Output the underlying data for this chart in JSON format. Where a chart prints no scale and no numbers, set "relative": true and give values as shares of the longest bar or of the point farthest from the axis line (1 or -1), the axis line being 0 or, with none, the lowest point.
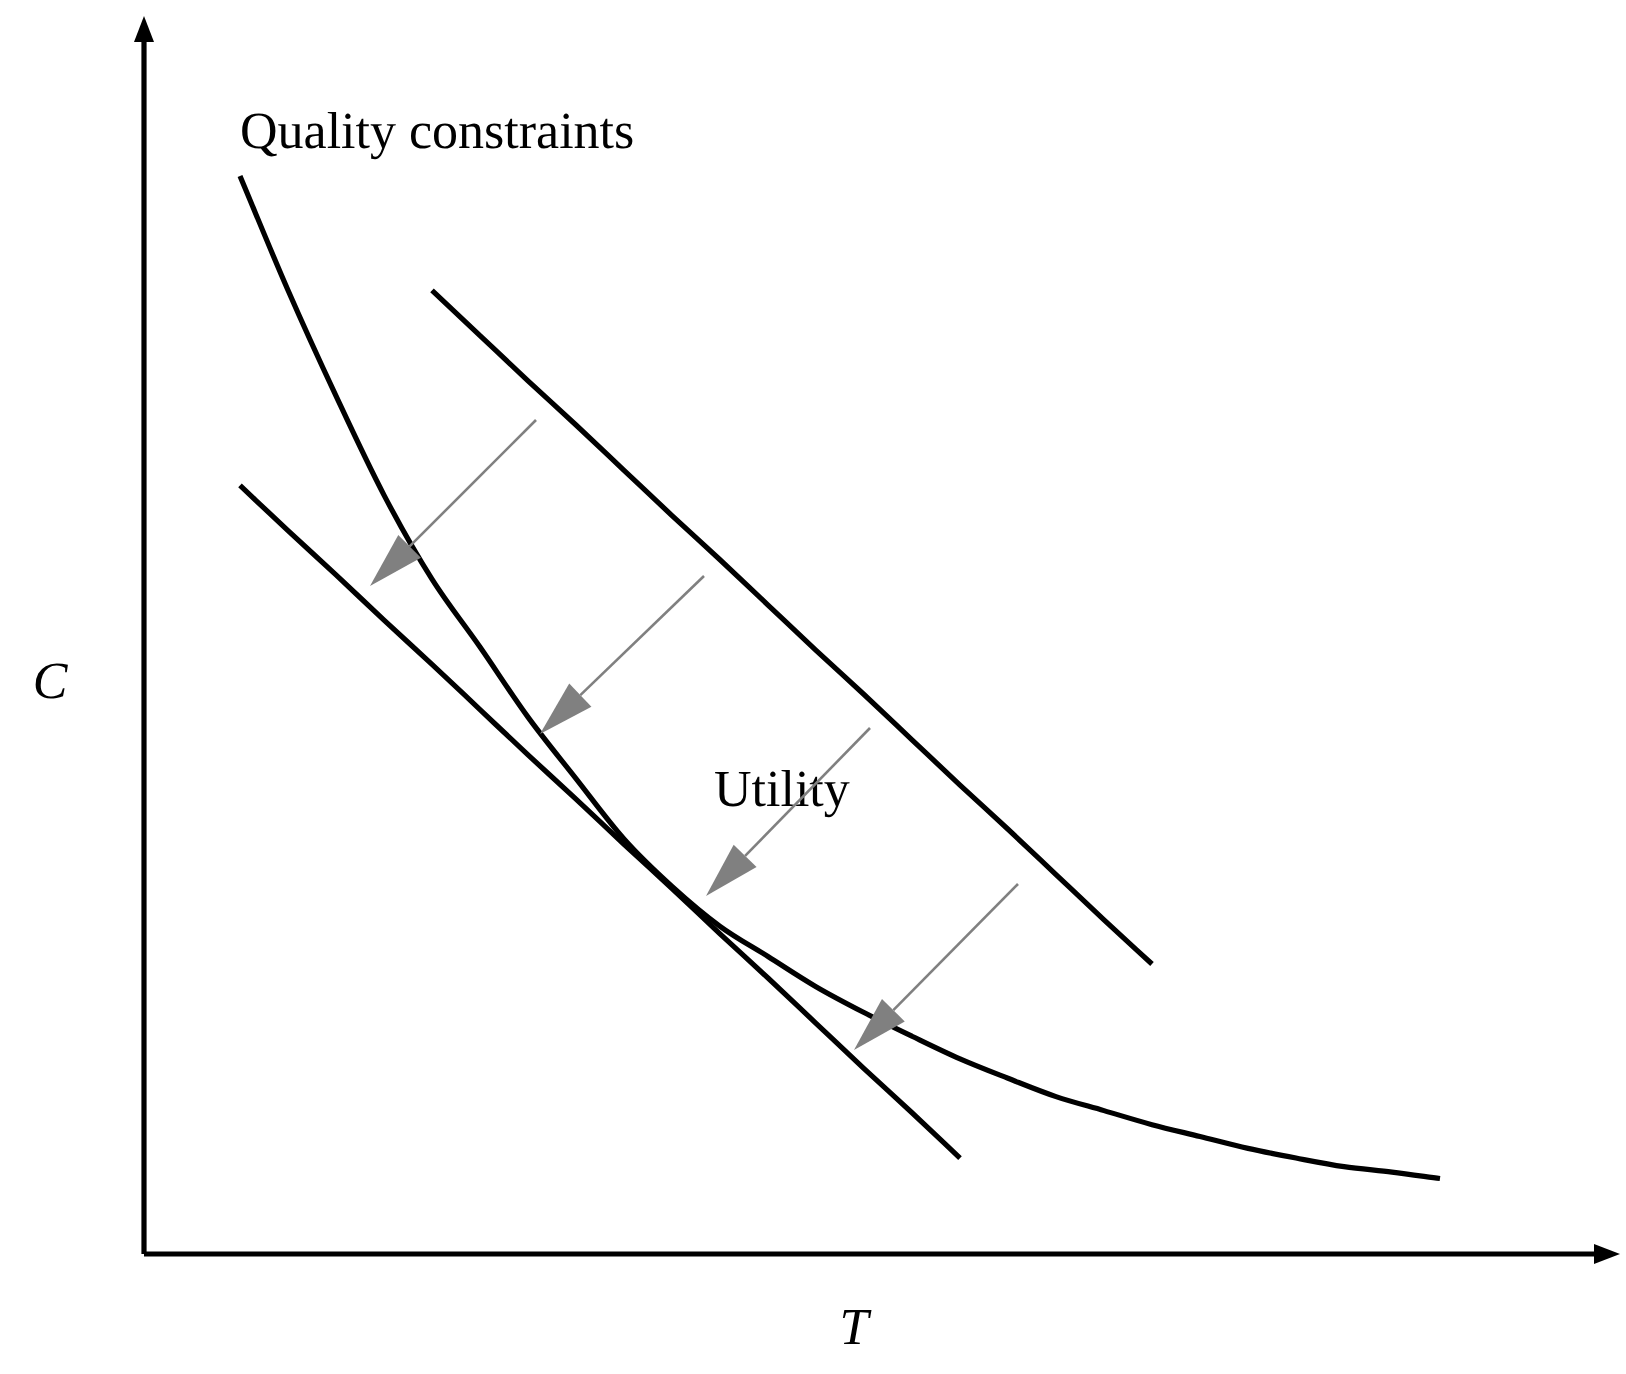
{
  "chart_data": {
    "type": "line",
    "relative": true,
    "marker": "none",
    "xlabel": "T",
    "ylabel": "C",
    "annotations": [
      "Utility"
    ],
    "categories": [
      null,
      null,
      null,
      null,
      null,
      null,
      null,
      null,
      null,
      null,
      null,
      null,
      null,
      null,
      null,
      null,
      null,
      null,
      null,
      null,
      null,
      null,
      null,
      null,
      null,
      null,
      null,
      null,
      null,
      null,
      null
    ],
    "series": [
      {
        "name": "Quality constraints",
        "color": "#000000",
        "values": [
          null,
          null,
          1.0,
          0.894,
          0.796,
          0.704,
          0.626,
          0.563,
          0.498,
          0.441,
          0.385,
          0.341,
          0.304,
          0.276,
          0.248,
          0.224,
          0.202,
          0.181,
          0.163,
          0.146,
          0.133,
          0.12,
          0.109,
          0.098,
          0.089,
          0.081,
          0.076,
          0.07,
          null,
          null,
          null
        ]
      },
      {
        "color": "#000000",
        "values": [
          null,
          null,
          null,
          null,
          null,
          null,
          0.894,
          0.852,
          0.81,
          0.769,
          0.727,
          0.685,
          0.644,
          0.602,
          0.56,
          0.519,
          0.477,
          0.435,
          0.394,
          0.352,
          0.31,
          0.269,
          null,
          null,
          null,
          null,
          null,
          null,
          null,
          null,
          null
        ]
      },
      {
        "color": "#000000",
        "values": [
          null,
          null,
          0.713,
          0.671,
          0.63,
          0.588,
          0.547,
          0.505,
          0.463,
          0.422,
          0.38,
          0.339,
          0.297,
          0.256,
          0.214,
          0.172,
          0.131,
          0.089,
          null,
          null,
          null,
          null,
          null,
          null,
          null,
          null,
          null,
          null,
          null,
          null,
          null
        ]
      }
    ]
  }
}
